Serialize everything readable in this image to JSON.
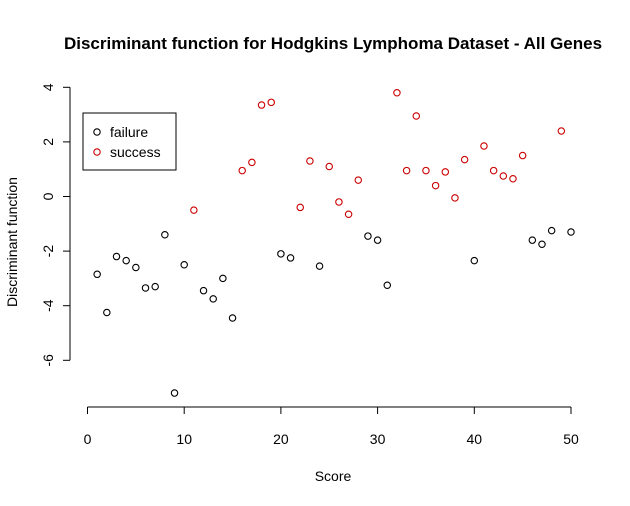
{
  "chart_data": {
    "type": "scatter",
    "title": "Discriminant function for Hodgkins Lymphoma Dataset - All Genes",
    "xlabel": "Score",
    "ylabel": "Discriminant function",
    "xlim": [
      0,
      50
    ],
    "ylim": [
      -7.5,
      4.2
    ],
    "x_ticks": [
      0,
      10,
      20,
      30,
      40,
      50
    ],
    "y_ticks": [
      -6,
      -4,
      -2,
      0,
      2,
      4
    ],
    "grid": false,
    "legend_position": "top-left",
    "series": [
      {
        "name": "failure",
        "color": "#000000",
        "points": [
          [
            1,
            -2.85
          ],
          [
            2,
            -4.25
          ],
          [
            3,
            -2.2
          ],
          [
            4,
            -2.35
          ],
          [
            5,
            -2.6
          ],
          [
            6,
            -3.35
          ],
          [
            7,
            -3.3
          ],
          [
            8,
            -1.4
          ],
          [
            9,
            -7.2
          ],
          [
            10,
            -2.5
          ],
          [
            12,
            -3.45
          ],
          [
            13,
            -3.75
          ],
          [
            14,
            -3.0
          ],
          [
            15,
            -4.45
          ],
          [
            20,
            -2.1
          ],
          [
            21,
            -2.25
          ],
          [
            24,
            -2.55
          ],
          [
            29,
            -1.45
          ],
          [
            30,
            -1.6
          ],
          [
            31,
            -3.25
          ],
          [
            40,
            -2.35
          ],
          [
            46,
            -1.6
          ],
          [
            47,
            -1.75
          ],
          [
            48,
            -1.25
          ],
          [
            50,
            -1.3
          ]
        ]
      },
      {
        "name": "success",
        "color": "#cc0000",
        "points": [
          [
            11,
            -0.5
          ],
          [
            16,
            0.95
          ],
          [
            17,
            1.25
          ],
          [
            18,
            3.35
          ],
          [
            19,
            3.45
          ],
          [
            22,
            -0.4
          ],
          [
            23,
            1.3
          ],
          [
            25,
            1.1
          ],
          [
            26,
            -0.2
          ],
          [
            27,
            -0.65
          ],
          [
            28,
            0.6
          ],
          [
            32,
            3.8
          ],
          [
            33,
            0.95
          ],
          [
            34,
            2.95
          ],
          [
            35,
            0.95
          ],
          [
            36,
            0.4
          ],
          [
            37,
            0.9
          ],
          [
            38,
            -0.05
          ],
          [
            39,
            1.35
          ],
          [
            41,
            1.85
          ],
          [
            42,
            0.95
          ],
          [
            43,
            0.75
          ],
          [
            44,
            0.65
          ],
          [
            45,
            1.5
          ],
          [
            49,
            2.4
          ]
        ]
      }
    ]
  }
}
